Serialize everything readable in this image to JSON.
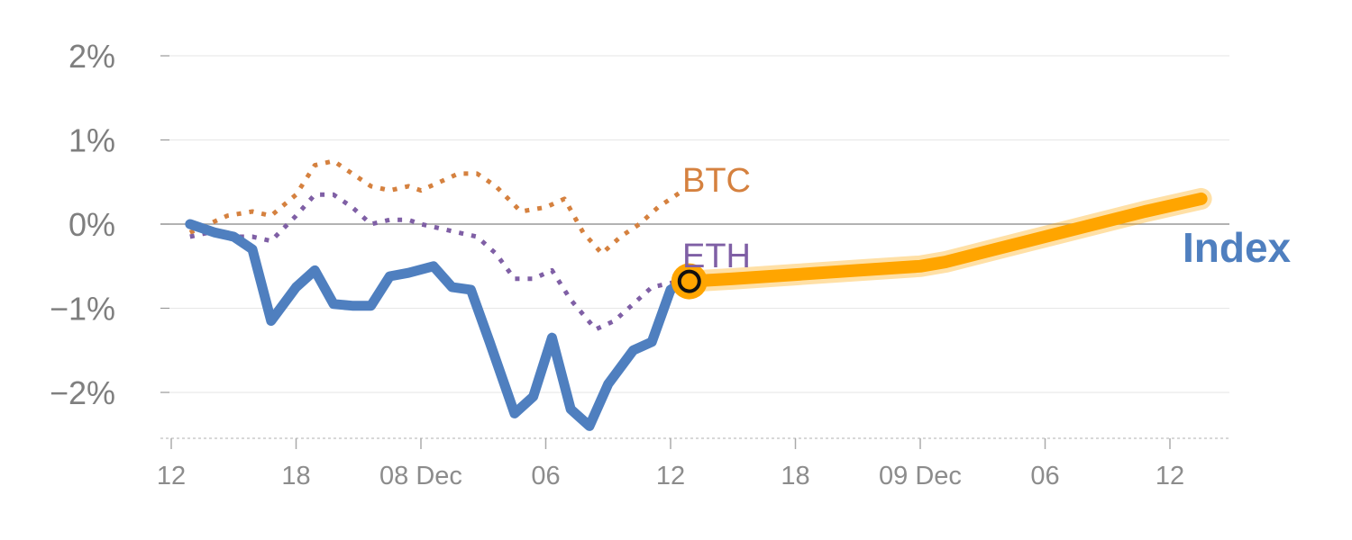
{
  "chart_data": {
    "type": "line",
    "title": "",
    "xlabel": "",
    "ylabel": "",
    "x_unit": "hours",
    "x_range": [
      0,
      84
    ],
    "ylim": [
      -2.5,
      2.0
    ],
    "yticks": [
      {
        "value": 2,
        "label": "2%"
      },
      {
        "value": 1,
        "label": "1%"
      },
      {
        "value": 0,
        "label": "0%"
      },
      {
        "value": -1,
        "label": "−1%"
      },
      {
        "value": -2,
        "label": "−2%"
      }
    ],
    "xticks": [
      {
        "value": 0,
        "label": "12"
      },
      {
        "value": 10,
        "label": "18"
      },
      {
        "value": 20,
        "label": "08 Dec"
      },
      {
        "value": 30,
        "label": "06"
      },
      {
        "value": 40,
        "label": "12"
      },
      {
        "value": 50,
        "label": "18"
      },
      {
        "value": 60,
        "label": "09 Dec"
      },
      {
        "value": 70,
        "label": "06"
      },
      {
        "value": 80,
        "label": "12"
      }
    ],
    "grid": true,
    "series": [
      {
        "name": "BTC",
        "style": "dotted",
        "color": "#d5813f",
        "points": [
          [
            1.5,
            -0.1
          ],
          [
            3,
            0
          ],
          [
            4.5,
            0.1
          ],
          [
            6.5,
            0.15
          ],
          [
            8,
            0.1
          ],
          [
            10,
            0.35
          ],
          [
            11.5,
            0.7
          ],
          [
            13,
            0.75
          ],
          [
            14.5,
            0.6
          ],
          [
            16,
            0.45
          ],
          [
            17.5,
            0.4
          ],
          [
            19,
            0.45
          ],
          [
            20,
            0.4
          ],
          [
            21.5,
            0.5
          ],
          [
            23,
            0.6
          ],
          [
            24.5,
            0.6
          ],
          [
            26,
            0.45
          ],
          [
            28,
            0.15
          ],
          [
            30,
            0.2
          ],
          [
            31.5,
            0.3
          ],
          [
            33,
            -0.1
          ],
          [
            34.5,
            -0.35
          ],
          [
            36,
            -0.15
          ],
          [
            37.5,
            0
          ],
          [
            39,
            0.2
          ],
          [
            41,
            0.4
          ]
        ]
      },
      {
        "name": "ETH",
        "style": "dotted",
        "color": "#7f5fa5",
        "points": [
          [
            1.5,
            -0.15
          ],
          [
            3,
            -0.1
          ],
          [
            4.5,
            -0.15
          ],
          [
            6.5,
            -0.15
          ],
          [
            8,
            -0.2
          ],
          [
            10,
            0.1
          ],
          [
            11.5,
            0.35
          ],
          [
            13,
            0.35
          ],
          [
            14.5,
            0.2
          ],
          [
            16,
            0
          ],
          [
            17.5,
            0.05
          ],
          [
            19,
            0.05
          ],
          [
            20,
            0
          ],
          [
            21.5,
            -0.05
          ],
          [
            23,
            -0.1
          ],
          [
            24.5,
            -0.15
          ],
          [
            26,
            -0.35
          ],
          [
            27.5,
            -0.65
          ],
          [
            29,
            -0.65
          ],
          [
            30.5,
            -0.55
          ],
          [
            32,
            -0.9
          ],
          [
            34,
            -1.25
          ],
          [
            35.5,
            -1.15
          ],
          [
            37,
            -0.95
          ],
          [
            38.5,
            -0.75
          ],
          [
            40,
            -0.7
          ],
          [
            41.5,
            -0.65
          ]
        ]
      },
      {
        "name": "Index",
        "style": "solid",
        "color": "#4f7fbf",
        "points": [
          [
            1.5,
            0
          ],
          [
            3.5,
            -0.1
          ],
          [
            5,
            -0.15
          ],
          [
            6.5,
            -0.3
          ],
          [
            8,
            -1.15
          ],
          [
            10,
            -0.75
          ],
          [
            11.5,
            -0.55
          ],
          [
            13,
            -0.95
          ],
          [
            14.5,
            -0.97
          ],
          [
            16,
            -0.97
          ],
          [
            17.5,
            -0.62
          ],
          [
            19,
            -0.58
          ],
          [
            21,
            -0.5
          ],
          [
            22.5,
            -0.75
          ],
          [
            24,
            -0.78
          ],
          [
            25.5,
            -1.4
          ],
          [
            27.5,
            -2.25
          ],
          [
            29,
            -2.05
          ],
          [
            30.5,
            -1.35
          ],
          [
            32,
            -2.2
          ],
          [
            33.5,
            -2.4
          ],
          [
            35,
            -1.9
          ],
          [
            37,
            -1.5
          ],
          [
            38.5,
            -1.4
          ],
          [
            40,
            -0.78
          ],
          [
            41.5,
            -0.65
          ]
        ]
      }
    ],
    "forecast": {
      "color": "#ffa500",
      "points": [
        [
          41.5,
          -0.68
        ],
        [
          45,
          -0.65
        ],
        [
          50,
          -0.6
        ],
        [
          55,
          -0.55
        ],
        [
          60,
          -0.5
        ],
        [
          62,
          -0.45
        ],
        [
          66,
          -0.3
        ],
        [
          70,
          -0.15
        ],
        [
          74,
          0
        ],
        [
          78,
          0.15
        ],
        [
          82.5,
          0.3
        ]
      ]
    },
    "marker": {
      "x": 41.5,
      "y": -0.68
    },
    "labels": {
      "btc": "BTC",
      "eth": "ETH",
      "index": "Index"
    },
    "colors": {
      "btc": "#d5813f",
      "eth": "#7f5fa5",
      "index": "#4f7fbf",
      "forecast": "#ffa500",
      "grid": "#e6e6e6",
      "zero_line": "#999999",
      "axis": "#cccccc",
      "tick_text": "#8c8c8c"
    }
  }
}
